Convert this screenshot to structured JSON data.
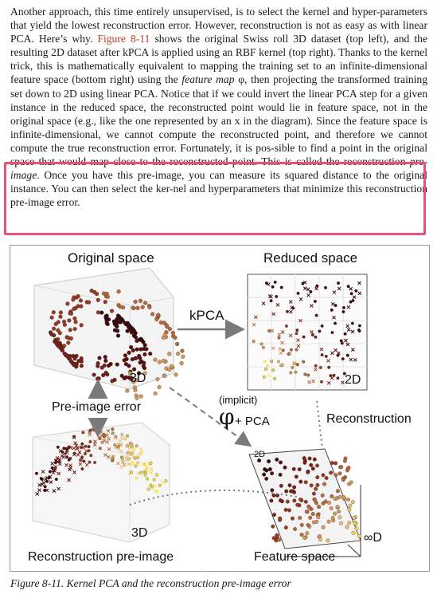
{
  "paragraph": {
    "p1": "Another approach, this time entirely unsupervised, is to select the kernel and hyper-parameters that yield the lowest reconstruction error. However, reconstruction is not as easy as with linear PCA. Here’s why. ",
    "ref": "Figure 8-11",
    "p2": " shows the original Swiss roll 3D dataset (top left), and the resulting 2D dataset after kPCA is applied using an RBF kernel (top right). Thanks to the kernel trick, this is mathematically equivalent to mapping the training set to an infinite-dimensional feature space (bottom right) using the ",
    "em1": "feature map",
    "p3": " φ, then projecting the transformed training set down to 2D using linear PCA. Notice that if we could invert the linear PCA step for a given instance in the reduced space, the reconstructed point would lie in feature space, not in the original space (e.g., like the one represented by an x in the diagram). Since the feature space is infinite-dimensional, we cannot compute the reconstructed point, and therefore we cannot compute the true reconstruction error. Fortunately, it is pos-sible to find a point in the original space that would map close to the reconstructed point. This is called the reconstruction ",
    "em2": "pre-image",
    "p4": ". Once you have this pre-image, you can measure its squared distance to the original instance. You can then select the ker-nel and hyperparameters that minimize this reconstruction pre-image error."
  },
  "figure": {
    "original_space": "Original space",
    "reduced_space": "Reduced space",
    "kpca": "kPCA",
    "label_3d_top": "3D",
    "label_2d": "2D",
    "label_2d_plane": "2D",
    "pre_image_error": "Pre-image error",
    "implicit": "(implicit)",
    "phi": "φ",
    "plus_pca": "+ PCA",
    "reconstruction": "Reconstruction",
    "label_3d_bottom": "3D",
    "reconstruction_pre_image": "Reconstruction pre-image",
    "feature_space": "Feature space",
    "infinity_d": "∞D"
  },
  "caption": "Figure 8-11. Kernel PCA and the reconstruction pre-image error"
}
